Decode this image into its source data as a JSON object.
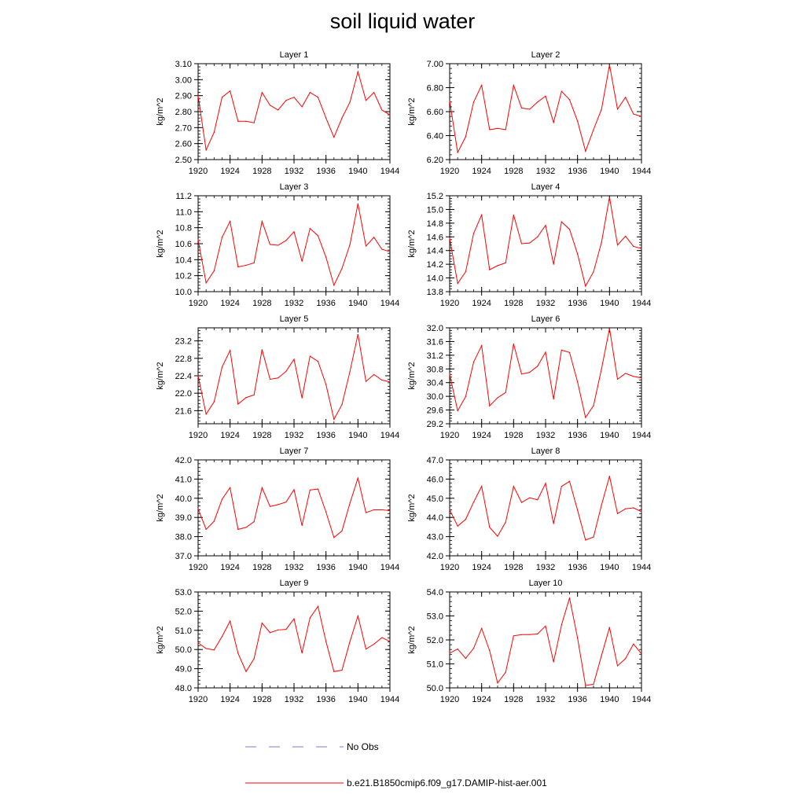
{
  "title": "soil liquid water",
  "colors": {
    "model_line": "#ff0000",
    "obs_line": "#7b7bd6",
    "axis": "#000000"
  },
  "legend": {
    "position": "bottom-center",
    "entries": [
      {
        "label": "No Obs",
        "style": "dashed",
        "color": "#7b7bd6"
      },
      {
        "label": "b.e21.B1850cmip6.f09_g17.DAMIP-hist-aer.001",
        "style": "solid",
        "color": "#ff0000"
      }
    ]
  },
  "chart_data": [
    {
      "type": "line",
      "title": "Layer 1",
      "ylabel": "kg/m^2",
      "xlim": [
        1920,
        1944
      ],
      "ylim": [
        2.5,
        3.1
      ],
      "xticks": [
        1920,
        1924,
        1928,
        1932,
        1936,
        1940,
        1944
      ],
      "xtick_labels": [
        "1920",
        "1924",
        "1928",
        "1932",
        "1936",
        "1940",
        "1944"
      ],
      "yticks": [
        2.5,
        2.6,
        2.7,
        2.8,
        2.9,
        3.0,
        3.1
      ],
      "ytick_labels": [
        "2.50",
        "2.60",
        "2.70",
        "2.80",
        "2.90",
        "3.00",
        "3.10"
      ],
      "series": [
        {
          "name": "b.e21.B1850cmip6.f09_g17.DAMIP-hist-aer.001",
          "x": [
            1920,
            1921,
            1922,
            1923,
            1924,
            1925,
            1926,
            1927,
            1928,
            1929,
            1930,
            1931,
            1932,
            1933,
            1934,
            1935,
            1936,
            1937,
            1938,
            1939,
            1940,
            1941,
            1942,
            1943,
            1944
          ],
          "y": [
            2.9,
            2.56,
            2.67,
            2.89,
            2.93,
            2.74,
            2.74,
            2.73,
            2.92,
            2.84,
            2.81,
            2.87,
            2.89,
            2.83,
            2.92,
            2.89,
            2.76,
            2.64,
            2.76,
            2.86,
            3.05,
            2.87,
            2.92,
            2.81,
            2.78
          ]
        }
      ]
    },
    {
      "type": "line",
      "title": "Layer 2",
      "ylabel": "kg/m^2",
      "xlim": [
        1920,
        1944
      ],
      "ylim": [
        6.2,
        7.0
      ],
      "xticks": [
        1920,
        1924,
        1928,
        1932,
        1936,
        1940,
        1944
      ],
      "xtick_labels": [
        "1920",
        "1924",
        "1928",
        "1932",
        "1936",
        "1940",
        "1944"
      ],
      "yticks": [
        6.2,
        6.4,
        6.6,
        6.8,
        7.0
      ],
      "ytick_labels": [
        "6.20",
        "6.40",
        "6.60",
        "6.80",
        "7.00"
      ],
      "series": [
        {
          "name": "b.e21.B1850cmip6.f09_g17.DAMIP-hist-aer.001",
          "x": [
            1920,
            1921,
            1922,
            1923,
            1924,
            1925,
            1926,
            1927,
            1928,
            1929,
            1930,
            1931,
            1932,
            1933,
            1934,
            1935,
            1936,
            1937,
            1938,
            1939,
            1940,
            1941,
            1942,
            1943,
            1944
          ],
          "y": [
            6.69,
            6.26,
            6.39,
            6.68,
            6.82,
            6.45,
            6.46,
            6.45,
            6.82,
            6.63,
            6.62,
            6.68,
            6.73,
            6.51,
            6.77,
            6.7,
            6.52,
            6.27,
            6.45,
            6.62,
            6.99,
            6.62,
            6.72,
            6.58,
            6.56
          ]
        }
      ]
    },
    {
      "type": "line",
      "title": "Layer 3",
      "ylabel": "kg/m^2",
      "xlim": [
        1920,
        1944
      ],
      "ylim": [
        10.0,
        11.2
      ],
      "xticks": [
        1920,
        1924,
        1928,
        1932,
        1936,
        1940,
        1944
      ],
      "xtick_labels": [
        "1920",
        "1924",
        "1928",
        "1932",
        "1936",
        "1940",
        "1944"
      ],
      "yticks": [
        10.0,
        10.2,
        10.4,
        10.6,
        10.8,
        11.0,
        11.2
      ],
      "ytick_labels": [
        "10.0",
        "10.2",
        "10.4",
        "10.6",
        "10.8",
        "11.0",
        "11.2"
      ],
      "series": [
        {
          "name": "b.e21.B1850cmip6.f09_g17.DAMIP-hist-aer.001",
          "x": [
            1920,
            1921,
            1922,
            1923,
            1924,
            1925,
            1926,
            1927,
            1928,
            1929,
            1930,
            1931,
            1932,
            1933,
            1934,
            1935,
            1936,
            1937,
            1938,
            1939,
            1940,
            1941,
            1942,
            1943,
            1944
          ],
          "y": [
            10.65,
            10.11,
            10.26,
            10.68,
            10.88,
            10.31,
            10.33,
            10.36,
            10.88,
            10.59,
            10.58,
            10.64,
            10.75,
            10.38,
            10.79,
            10.7,
            10.43,
            10.08,
            10.29,
            10.59,
            11.1,
            10.57,
            10.68,
            10.53,
            10.5
          ]
        }
      ]
    },
    {
      "type": "line",
      "title": "Layer 4",
      "ylabel": "kg/m^2",
      "xlim": [
        1920,
        1944
      ],
      "ylim": [
        13.8,
        15.2
      ],
      "xticks": [
        1920,
        1924,
        1928,
        1932,
        1936,
        1940,
        1944
      ],
      "xtick_labels": [
        "1920",
        "1924",
        "1928",
        "1932",
        "1936",
        "1940",
        "1944"
      ],
      "yticks": [
        13.8,
        14.0,
        14.2,
        14.4,
        14.6,
        14.8,
        15.0,
        15.2
      ],
      "ytick_labels": [
        "13.8",
        "14.0",
        "14.2",
        "14.4",
        "14.6",
        "14.8",
        "15.0",
        "15.2"
      ],
      "series": [
        {
          "name": "b.e21.B1850cmip6.f09_g17.DAMIP-hist-aer.001",
          "x": [
            1920,
            1921,
            1922,
            1923,
            1924,
            1925,
            1926,
            1927,
            1928,
            1929,
            1930,
            1931,
            1932,
            1933,
            1934,
            1935,
            1936,
            1937,
            1938,
            1939,
            1940,
            1941,
            1942,
            1943,
            1944
          ],
          "y": [
            14.58,
            13.92,
            14.09,
            14.65,
            14.92,
            14.12,
            14.18,
            14.22,
            14.92,
            14.5,
            14.51,
            14.6,
            14.77,
            14.2,
            14.82,
            14.71,
            14.35,
            13.88,
            14.09,
            14.52,
            15.18,
            14.48,
            14.61,
            14.46,
            14.43
          ]
        }
      ]
    },
    {
      "type": "line",
      "title": "Layer 5",
      "ylabel": "kg/m^2",
      "xlim": [
        1920,
        1944
      ],
      "ylim": [
        21.3,
        23.5
      ],
      "xticks": [
        1920,
        1924,
        1928,
        1932,
        1936,
        1940,
        1944
      ],
      "xtick_labels": [
        "1920",
        "1924",
        "1928",
        "1932",
        "1936",
        "1940",
        "1944"
      ],
      "yticks": [
        21.6,
        22.0,
        22.4,
        22.8,
        23.2
      ],
      "ytick_labels": [
        "21.6",
        "22.0",
        "22.4",
        "22.8",
        "23.2"
      ],
      "series": [
        {
          "name": "b.e21.B1850cmip6.f09_g17.DAMIP-hist-aer.001",
          "x": [
            1920,
            1921,
            1922,
            1923,
            1924,
            1925,
            1926,
            1927,
            1928,
            1929,
            1930,
            1931,
            1932,
            1933,
            1934,
            1935,
            1936,
            1937,
            1938,
            1939,
            1940,
            1941,
            1942,
            1943,
            1944
          ],
          "y": [
            22.4,
            21.52,
            21.8,
            22.6,
            22.98,
            21.75,
            21.9,
            21.96,
            23.0,
            22.32,
            22.35,
            22.5,
            22.78,
            21.89,
            22.85,
            22.73,
            22.2,
            21.4,
            21.74,
            22.5,
            23.35,
            22.27,
            22.43,
            22.3,
            22.26
          ]
        }
      ]
    },
    {
      "type": "line",
      "title": "Layer 6",
      "ylabel": "kg/m^2",
      "xlim": [
        1920,
        1944
      ],
      "ylim": [
        29.2,
        32.0
      ],
      "xticks": [
        1920,
        1924,
        1928,
        1932,
        1936,
        1940,
        1944
      ],
      "xtick_labels": [
        "1920",
        "1924",
        "1928",
        "1932",
        "1936",
        "1940",
        "1944"
      ],
      "yticks": [
        29.2,
        29.6,
        30.0,
        30.4,
        30.8,
        31.2,
        31.6,
        32.0
      ],
      "ytick_labels": [
        "29.2",
        "29.6",
        "30.0",
        "30.4",
        "30.8",
        "31.2",
        "31.6",
        "32.0"
      ],
      "series": [
        {
          "name": "b.e21.B1850cmip6.f09_g17.DAMIP-hist-aer.001",
          "x": [
            1920,
            1921,
            1922,
            1923,
            1924,
            1925,
            1926,
            1927,
            1928,
            1929,
            1930,
            1931,
            1932,
            1933,
            1934,
            1935,
            1936,
            1937,
            1938,
            1939,
            1940,
            1941,
            1942,
            1943,
            1944
          ],
          "y": [
            30.64,
            29.58,
            29.99,
            31.0,
            31.48,
            29.72,
            29.96,
            30.11,
            31.53,
            30.65,
            30.7,
            30.88,
            31.29,
            29.92,
            31.35,
            31.28,
            30.42,
            29.38,
            29.73,
            30.8,
            31.98,
            30.5,
            30.67,
            30.58,
            30.54
          ]
        }
      ]
    },
    {
      "type": "line",
      "title": "Layer 7",
      "ylabel": "kg/m^2",
      "xlim": [
        1920,
        1944
      ],
      "ylim": [
        37.0,
        42.0
      ],
      "xticks": [
        1920,
        1924,
        1928,
        1932,
        1936,
        1940,
        1944
      ],
      "xtick_labels": [
        "1920",
        "1924",
        "1928",
        "1932",
        "1936",
        "1940",
        "1944"
      ],
      "yticks": [
        37.0,
        38.0,
        39.0,
        40.0,
        41.0,
        42.0
      ],
      "ytick_labels": [
        "37.0",
        "38.0",
        "39.0",
        "40.0",
        "41.0",
        "42.0"
      ],
      "series": [
        {
          "name": "b.e21.B1850cmip6.f09_g17.DAMIP-hist-aer.001",
          "x": [
            1920,
            1921,
            1922,
            1923,
            1924,
            1925,
            1926,
            1927,
            1928,
            1929,
            1930,
            1931,
            1932,
            1933,
            1934,
            1935,
            1936,
            1937,
            1938,
            1939,
            1940,
            1941,
            1942,
            1943,
            1944
          ],
          "y": [
            39.45,
            38.38,
            38.8,
            39.95,
            40.55,
            38.38,
            38.48,
            38.78,
            40.55,
            39.57,
            39.67,
            39.8,
            40.45,
            38.58,
            40.43,
            40.48,
            39.28,
            37.95,
            38.3,
            39.75,
            41.05,
            39.25,
            39.4,
            39.4,
            39.35
          ]
        }
      ]
    },
    {
      "type": "line",
      "title": "Layer 8",
      "ylabel": "kg/m^2",
      "xlim": [
        1920,
        1944
      ],
      "ylim": [
        42.0,
        47.0
      ],
      "xticks": [
        1920,
        1924,
        1928,
        1932,
        1936,
        1940,
        1944
      ],
      "xtick_labels": [
        "1920",
        "1924",
        "1928",
        "1932",
        "1936",
        "1940",
        "1944"
      ],
      "yticks": [
        42.0,
        43.0,
        44.0,
        45.0,
        46.0,
        47.0
      ],
      "ytick_labels": [
        "42.0",
        "43.0",
        "44.0",
        "45.0",
        "46.0",
        "47.0"
      ],
      "series": [
        {
          "name": "b.e21.B1850cmip6.f09_g17.DAMIP-hist-aer.001",
          "x": [
            1920,
            1921,
            1922,
            1923,
            1924,
            1925,
            1926,
            1927,
            1928,
            1929,
            1930,
            1931,
            1932,
            1933,
            1934,
            1935,
            1936,
            1937,
            1938,
            1939,
            1940,
            1941,
            1942,
            1943,
            1944
          ],
          "y": [
            44.4,
            43.55,
            43.9,
            44.8,
            45.62,
            43.48,
            43.02,
            43.75,
            45.62,
            44.78,
            45.02,
            44.92,
            45.78,
            43.68,
            45.62,
            45.88,
            44.38,
            42.82,
            42.98,
            44.65,
            46.15,
            44.2,
            44.45,
            44.5,
            44.3
          ]
        }
      ]
    },
    {
      "type": "line",
      "title": "Layer 9",
      "ylabel": "kg/m^2",
      "xlim": [
        1920,
        1944
      ],
      "ylim": [
        48.0,
        53.0
      ],
      "xticks": [
        1920,
        1924,
        1928,
        1932,
        1936,
        1940,
        1944
      ],
      "xtick_labels": [
        "1920",
        "1924",
        "1928",
        "1932",
        "1936",
        "1940",
        "1944"
      ],
      "yticks": [
        48.0,
        49.0,
        50.0,
        51.0,
        52.0,
        53.0
      ],
      "ytick_labels": [
        "48.0",
        "49.0",
        "50.0",
        "51.0",
        "52.0",
        "53.0"
      ],
      "series": [
        {
          "name": "b.e21.B1850cmip6.f09_g17.DAMIP-hist-aer.001",
          "x": [
            1920,
            1921,
            1922,
            1923,
            1924,
            1925,
            1926,
            1927,
            1928,
            1929,
            1930,
            1931,
            1932,
            1933,
            1934,
            1935,
            1936,
            1937,
            1938,
            1939,
            1940,
            1941,
            1942,
            1943,
            1944
          ],
          "y": [
            50.35,
            50.05,
            49.98,
            50.68,
            51.48,
            49.8,
            48.85,
            49.52,
            51.38,
            50.88,
            51.02,
            51.05,
            51.6,
            49.82,
            51.65,
            52.25,
            50.42,
            48.85,
            48.92,
            50.42,
            51.75,
            50.02,
            50.28,
            50.62,
            50.42
          ]
        }
      ]
    },
    {
      "type": "line",
      "title": "Layer 10",
      "ylabel": "kg/m^2",
      "xlim": [
        1920,
        1944
      ],
      "ylim": [
        50.0,
        54.0
      ],
      "xticks": [
        1920,
        1924,
        1928,
        1932,
        1936,
        1940,
        1944
      ],
      "xtick_labels": [
        "1920",
        "1924",
        "1928",
        "1932",
        "1936",
        "1940",
        "1944"
      ],
      "yticks": [
        50.0,
        51.0,
        52.0,
        53.0,
        54.0
      ],
      "ytick_labels": [
        "50.0",
        "51.0",
        "52.0",
        "53.0",
        "54.0"
      ],
      "series": [
        {
          "name": "b.e21.B1850cmip6.f09_g17.DAMIP-hist-aer.001",
          "x": [
            1920,
            1921,
            1922,
            1923,
            1924,
            1925,
            1926,
            1927,
            1928,
            1929,
            1930,
            1931,
            1932,
            1933,
            1934,
            1935,
            1936,
            1937,
            1938,
            1939,
            1940,
            1941,
            1942,
            1943,
            1944
          ],
          "y": [
            51.45,
            51.62,
            51.23,
            51.65,
            52.48,
            51.55,
            50.2,
            50.65,
            52.17,
            52.22,
            52.22,
            52.25,
            52.58,
            51.08,
            52.63,
            53.75,
            52.08,
            50.1,
            50.15,
            51.35,
            52.52,
            50.92,
            51.22,
            51.83,
            51.42
          ]
        }
      ]
    }
  ]
}
